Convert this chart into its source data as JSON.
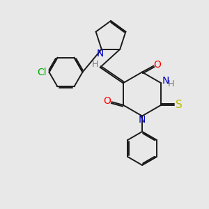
{
  "bg_color": "#e8e8e8",
  "bond_color": "#1a1a1a",
  "N_color": "#0000cc",
  "O_color": "#ff0000",
  "S_color": "#bbbb00",
  "Cl_color": "#00aa00",
  "H_color": "#777777",
  "line_width": 1.4,
  "figsize": [
    3.0,
    3.0
  ],
  "dpi": 100,
  "xlim": [
    0,
    10
  ],
  "ylim": [
    0,
    10
  ]
}
